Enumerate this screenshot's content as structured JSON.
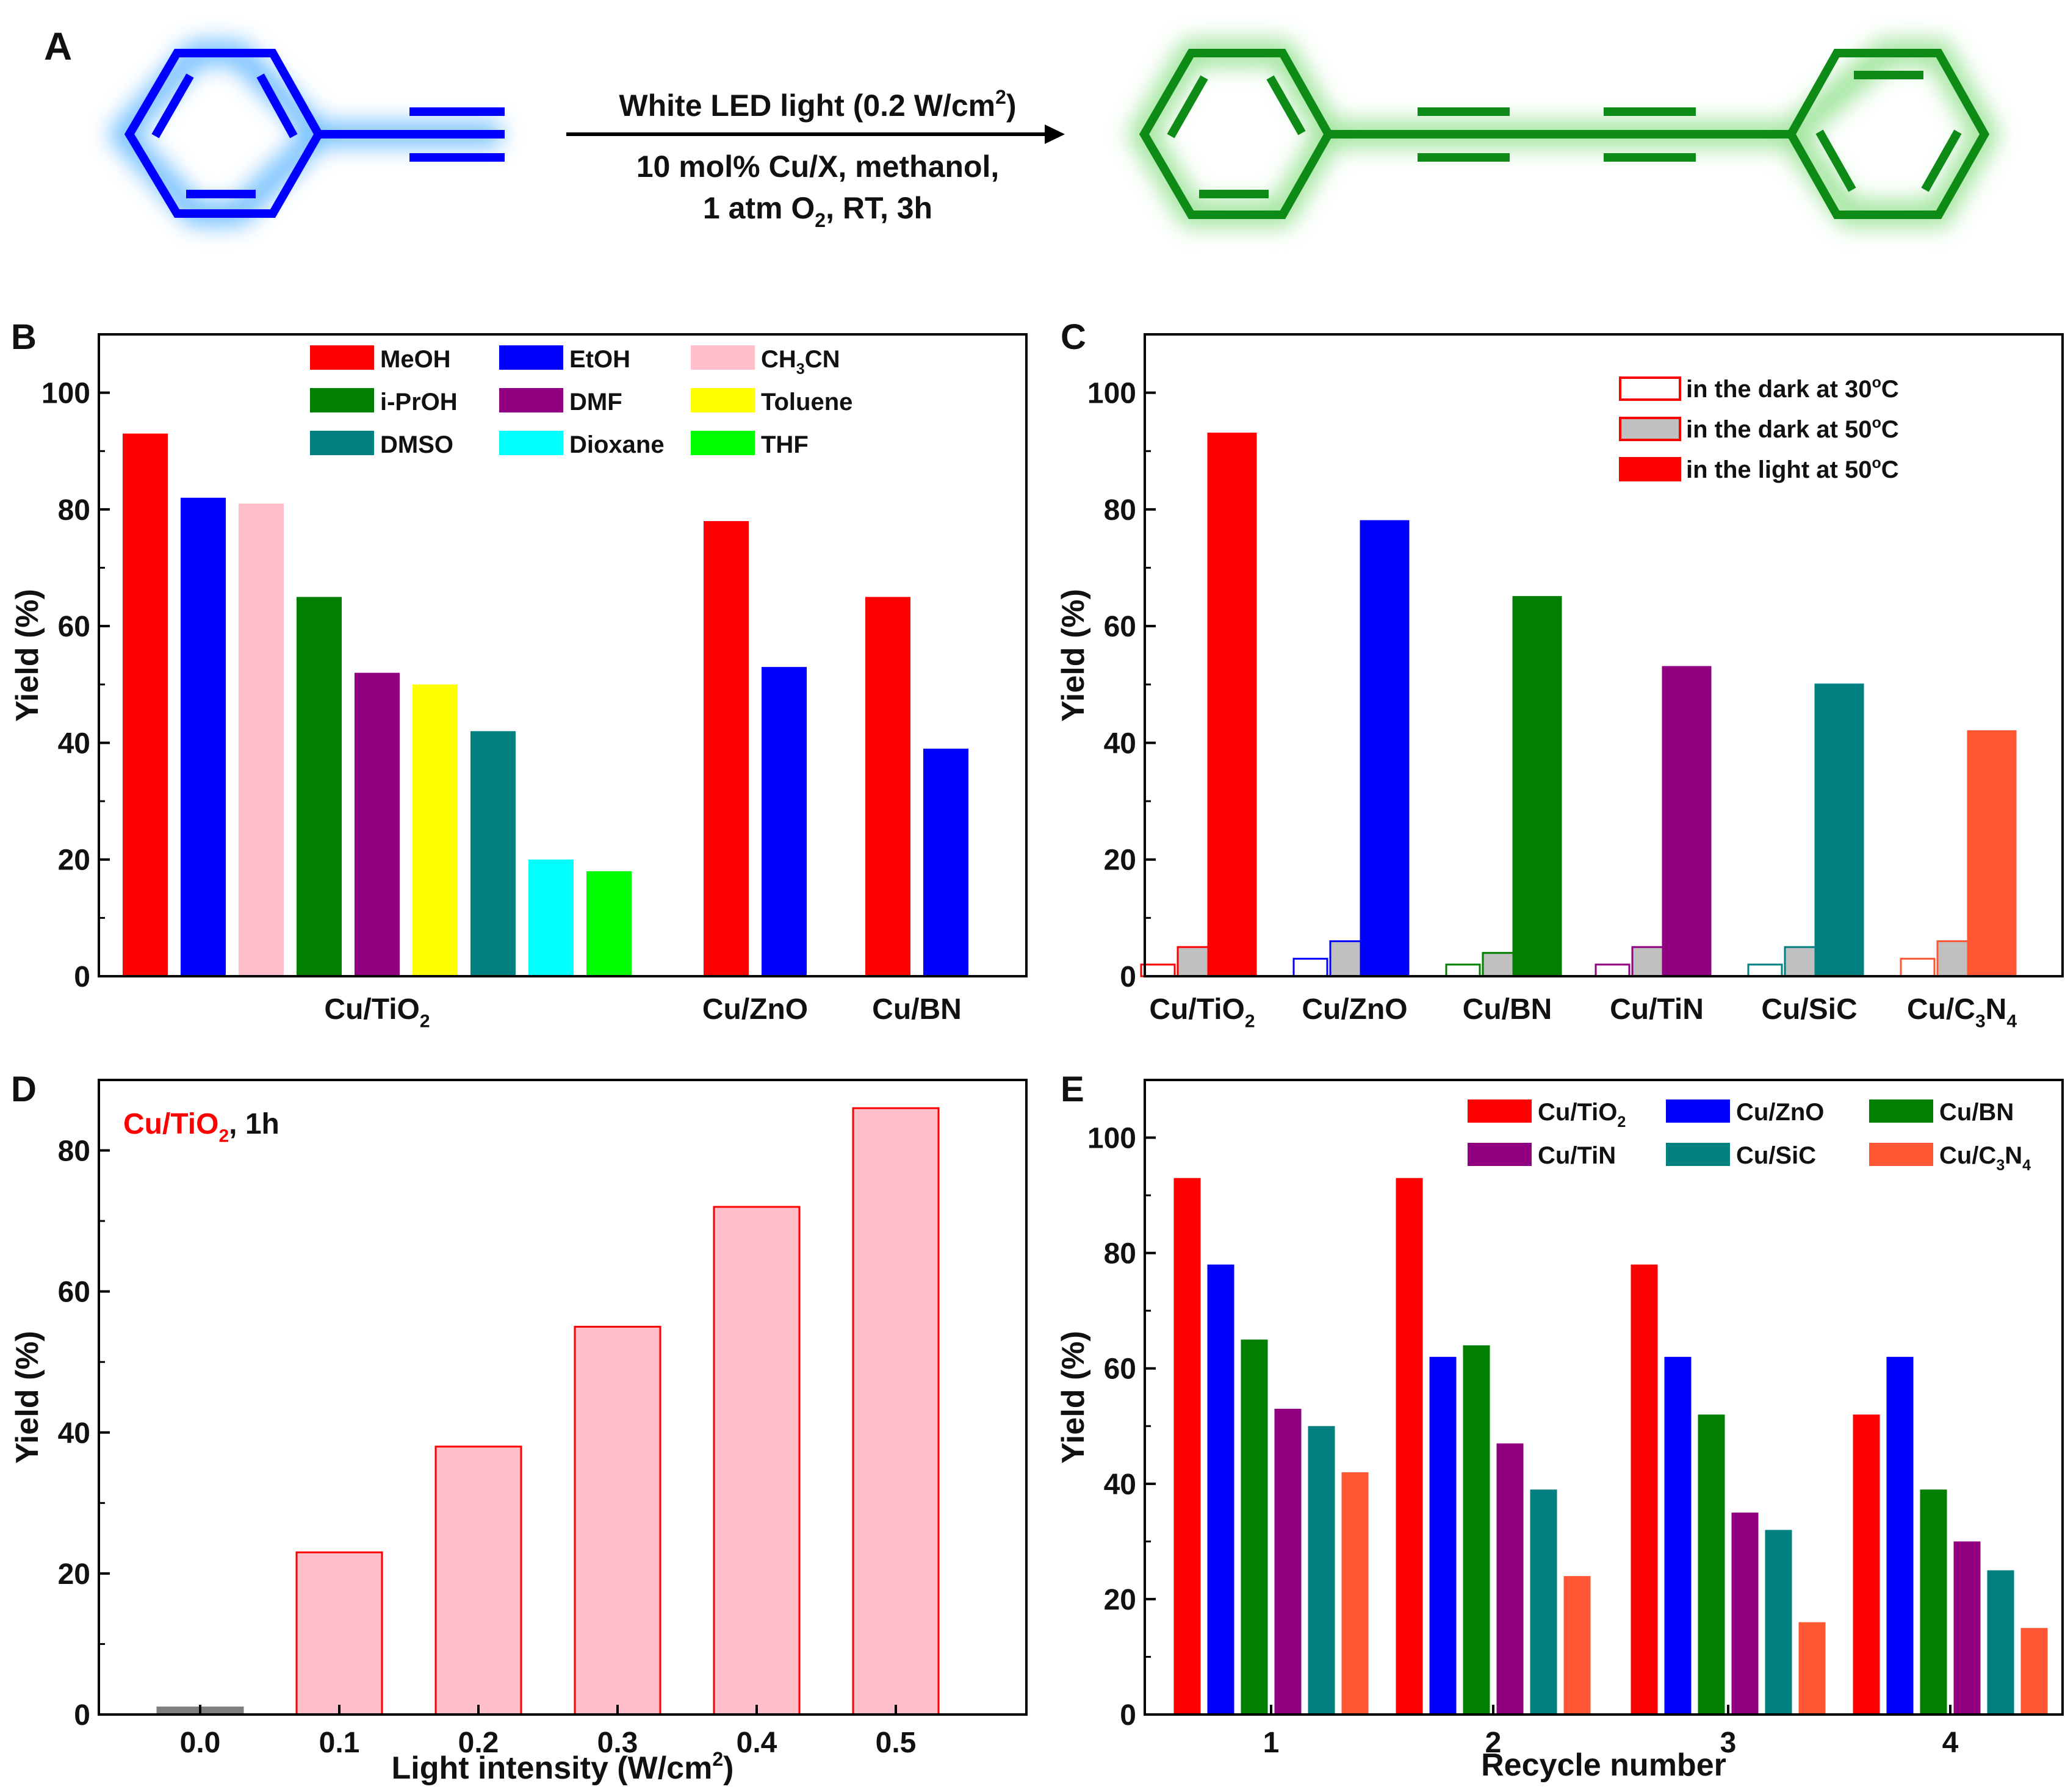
{
  "colors": {
    "red": "#ff0000",
    "blue": "#0000ff",
    "pink": "#ffc0cb",
    "green": "#007f00",
    "purple": "#900080",
    "yellow": "#ffff00",
    "teal": "#008080",
    "cyan": "#00ffff",
    "lime": "#00ff00",
    "coral": "#ff5733",
    "gray": "#c0c0c0",
    "darkgray": "#808080",
    "scheme_blue": "#0000ff",
    "scheme_green": "#0e8a16"
  },
  "scheme": {
    "panel_label": "A",
    "line1_text": "White LED light (0.2 W/cm",
    "line1_sup": "2",
    "line1_end": ")",
    "line2": "10 mol% Cu/X, methanol,",
    "line3_pre": "1 atm O",
    "line3_sub": "2",
    "line3_post": ", RT, 3h"
  },
  "chart_data": [
    {
      "panel": "B",
      "type": "bar",
      "ylabel": "Yield (%)",
      "ylim": [
        0,
        110
      ],
      "yticks": [
        "0",
        "20",
        "40",
        "60",
        "80",
        "100"
      ],
      "groups": [
        {
          "label": "Cu/TiO",
          "sub": "2",
          "bars": [
            {
              "series": "MeOH",
              "value": 93
            },
            {
              "series": "EtOH",
              "value": 82
            },
            {
              "series": "CH3CN",
              "value": 81
            },
            {
              "series": "i-PrOH",
              "value": 65
            },
            {
              "series": "DMF",
              "value": 52
            },
            {
              "series": "Toluene",
              "value": 50
            },
            {
              "series": "DMSO",
              "value": 42
            },
            {
              "series": "Dioxane",
              "value": 20
            },
            {
              "series": "THF",
              "value": 18
            }
          ]
        },
        {
          "label": "Cu/ZnO",
          "sub": "",
          "bars": [
            {
              "series": "MeOH",
              "value": 78
            },
            {
              "series": "EtOH",
              "value": 53
            }
          ]
        },
        {
          "label": "Cu/BN",
          "sub": "",
          "bars": [
            {
              "series": "MeOH",
              "value": 65
            },
            {
              "series": "EtOH",
              "value": 39
            }
          ]
        }
      ],
      "legend": [
        {
          "key": "MeOH",
          "label": "MeOH",
          "sub": "",
          "post": "",
          "color": "red"
        },
        {
          "key": "EtOH",
          "label": "EtOH",
          "sub": "",
          "post": "",
          "color": "blue"
        },
        {
          "key": "CH3CN",
          "label": "CH",
          "sub": "3",
          "post": "CN",
          "color": "pink"
        },
        {
          "key": "i-PrOH",
          "label": "i-PrOH",
          "sub": "",
          "post": "",
          "color": "green"
        },
        {
          "key": "DMF",
          "label": "DMF",
          "sub": "",
          "post": "",
          "color": "purple"
        },
        {
          "key": "Toluene",
          "label": "Toluene",
          "sub": "",
          "post": "",
          "color": "yellow"
        },
        {
          "key": "DMSO",
          "label": "DMSO",
          "sub": "",
          "post": "",
          "color": "teal"
        },
        {
          "key": "Dioxane",
          "label": "Dioxane",
          "sub": "",
          "post": "",
          "color": "cyan"
        },
        {
          "key": "THF",
          "label": "THF",
          "sub": "",
          "post": "",
          "color": "lime"
        }
      ]
    },
    {
      "panel": "C",
      "type": "bar",
      "ylabel": "Yield (%)",
      "ylim": [
        0,
        110
      ],
      "yticks": [
        "0",
        "20",
        "40",
        "60",
        "80",
        "100"
      ],
      "categories": [
        {
          "label": "Cu/TiO",
          "sub": "2",
          "post": "",
          "color": "red"
        },
        {
          "label": "Cu/ZnO",
          "sub": "",
          "post": "",
          "color": "blue"
        },
        {
          "label": "Cu/BN",
          "sub": "",
          "post": "",
          "color": "green"
        },
        {
          "label": "Cu/TiN",
          "sub": "",
          "post": "",
          "color": "purple"
        },
        {
          "label": "Cu/SiC",
          "sub": "",
          "post": "",
          "color": "teal"
        },
        {
          "label": "Cu/C",
          "sub": "3",
          "post": "N",
          "sub2": "4",
          "color": "coral"
        }
      ],
      "series": [
        {
          "name": "in the dark at 30°C",
          "values": [
            2,
            3,
            2,
            2,
            2,
            3
          ]
        },
        {
          "name": "in the dark at 50°C",
          "values": [
            5,
            6,
            4,
            5,
            5,
            6
          ]
        },
        {
          "name": "in the light at 50°C",
          "values": [
            93,
            78,
            65,
            53,
            50,
            42
          ]
        }
      ],
      "legend": [
        {
          "text": "in the dark at 30",
          "sup": "o",
          "post": "C",
          "style": "outline"
        },
        {
          "text": "in the dark at 50",
          "sup": "o",
          "post": "C",
          "style": "gray"
        },
        {
          "text": "in the light at 50",
          "sup": "o",
          "post": "C",
          "style": "filled"
        }
      ]
    },
    {
      "panel": "D",
      "type": "bar",
      "title_colored": "Cu/TiO",
      "title_sub": "2",
      "title_rest": ", 1h",
      "xlabel": "Light intensity (W/cm",
      "xlabel_sup": "2",
      "xlabel_end": ")",
      "ylabel": "Yield (%)",
      "ylim": [
        0,
        90
      ],
      "yticks": [
        "0",
        "20",
        "40",
        "60",
        "80"
      ],
      "categories": [
        "0.0",
        "0.1",
        "0.2",
        "0.3",
        "0.4",
        "0.5"
      ],
      "values": [
        1,
        23,
        38,
        55,
        72,
        86
      ]
    },
    {
      "panel": "E",
      "type": "bar",
      "xlabel": "Recycle number",
      "ylabel": "Yield (%)",
      "ylim": [
        0,
        110
      ],
      "yticks": [
        "0",
        "20",
        "40",
        "60",
        "80",
        "100"
      ],
      "categories": [
        "1",
        "2",
        "3",
        "4"
      ],
      "series": [
        {
          "name": "Cu/TiO2",
          "label": "Cu/TiO",
          "sub": "2",
          "post": "",
          "color": "red",
          "values": [
            93,
            93,
            78,
            52
          ]
        },
        {
          "name": "Cu/ZnO",
          "label": "Cu/ZnO",
          "sub": "",
          "post": "",
          "color": "blue",
          "values": [
            78,
            62,
            62,
            62
          ]
        },
        {
          "name": "Cu/BN",
          "label": "Cu/BN",
          "sub": "",
          "post": "",
          "color": "green",
          "values": [
            65,
            64,
            52,
            39
          ]
        },
        {
          "name": "Cu/TiN",
          "label": "Cu/TiN",
          "sub": "",
          "post": "",
          "color": "purple",
          "values": [
            53,
            47,
            35,
            30
          ]
        },
        {
          "name": "Cu/SiC",
          "label": "Cu/SiC",
          "sub": "",
          "post": "",
          "color": "teal",
          "values": [
            50,
            39,
            32,
            25
          ]
        },
        {
          "name": "Cu/C3N4",
          "label": "Cu/C",
          "sub": "3",
          "post": "N",
          "sub2": "4",
          "color": "coral",
          "values": [
            42,
            24,
            16,
            15
          ]
        }
      ]
    }
  ]
}
